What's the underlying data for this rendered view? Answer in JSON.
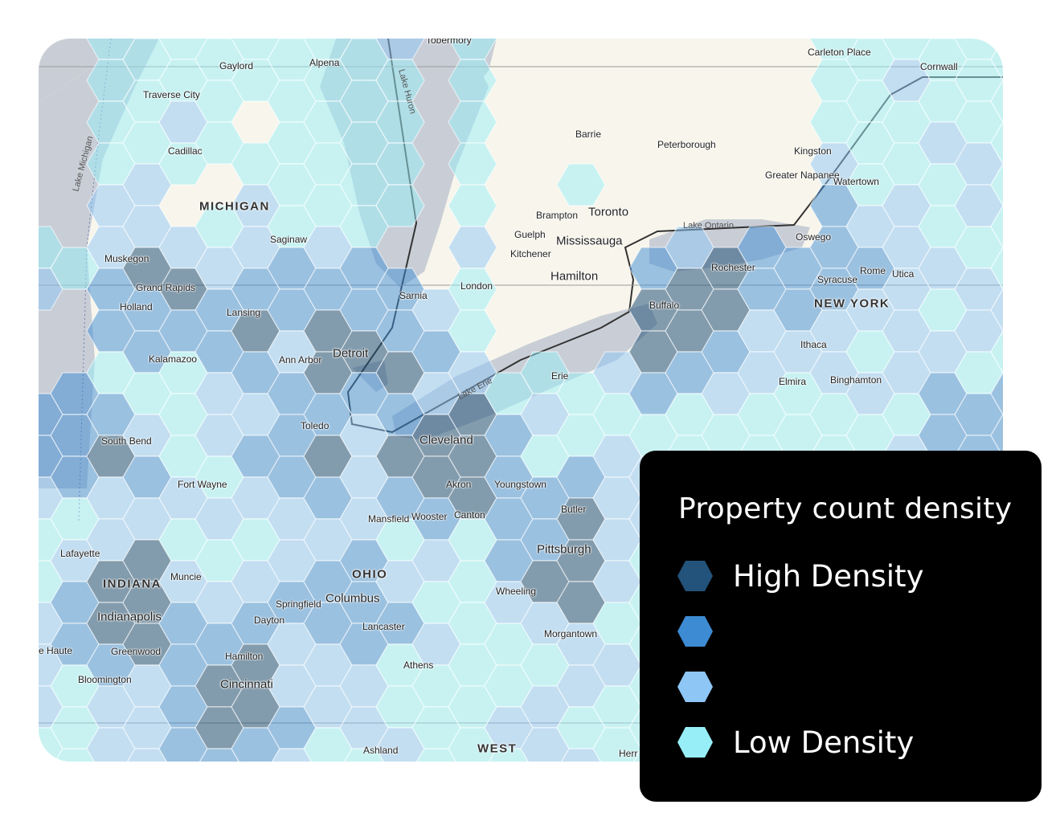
{
  "legend": {
    "title": "Property count density",
    "items": [
      {
        "label": "High Density",
        "color": "#23527a",
        "level": 4
      },
      {
        "label": "",
        "color": "#3d8bd3",
        "level": 3
      },
      {
        "label": "",
        "color": "#8ec6f5",
        "level": 2
      },
      {
        "label": "Low Density",
        "color": "#98eef7",
        "level": 1
      }
    ]
  },
  "map": {
    "colors": {
      "land": "#f8f6ec",
      "water": "#c9ced6",
      "border": "#333333"
    },
    "labels": {
      "tobermory": "Tobermory",
      "gaylord": "Gaylord",
      "alpena": "Alpena",
      "traverse_city": "Traverse City",
      "cadillac": "Cadillac",
      "michigan": "MICHIGAN",
      "saginaw": "Saginaw",
      "muskegon": "Muskegon",
      "grand_rapids": "Grand Rapids",
      "holland": "Holland",
      "lansing": "Lansing",
      "kalamazoo": "Kalamazoo",
      "ann_arbor": "Ann Arbor",
      "detroit": "Detroit",
      "sarnia": "Sarnia",
      "london": "London",
      "toledo": "Toledo",
      "south_bend": "South Bend",
      "fort_wayne": "Fort Wayne",
      "cleveland": "Cleveland",
      "akron": "Akron",
      "youngstown": "Youngstown",
      "mansfield": "Mansfield",
      "wooster": "Wooster",
      "canton": "Canton",
      "butler": "Butler",
      "pittsburgh": "Pittsburgh",
      "lafayette": "Lafayette",
      "indiana": "INDIANA",
      "muncie": "Muncie",
      "ohio": "OHIO",
      "columbus": "Columbus",
      "springfield": "Springfield",
      "indianapolis": "Indianapolis",
      "dayton": "Dayton",
      "lancaster": "Lancaster",
      "wheeling": "Wheeling",
      "morgantown": "Morgantown",
      "terre_haute": "e Haute",
      "greenwood": "Greenwood",
      "hamilton_oh": "Hamilton",
      "athens": "Athens",
      "bloomington": "Bloomington",
      "cincinnati": "Cincinnati",
      "ashland": "Ashland",
      "west_virginia": "WEST",
      "erie": "Erie",
      "barrie": "Barrie",
      "peterborough": "Peterborough",
      "kingston": "Kingston",
      "napanee": "Greater Napanee",
      "watertown": "Watertown",
      "brampton": "Brampton",
      "toronto": "Toronto",
      "guelph": "Guelph",
      "mississauga": "Mississauga",
      "kitchener": "Kitchener",
      "hamilton_on": "Hamilton",
      "oswego": "Oswego",
      "rochester": "Rochester",
      "rome": "Rome",
      "utica": "Utica",
      "syracuse": "Syracuse",
      "new_york": "NEW YORK",
      "buffalo": "Buffalo",
      "ithaca": "Ithaca",
      "elmira": "Elmira",
      "binghamton": "Binghamton",
      "carleton_place": "Carleton Place",
      "cornwall": "Cornwall",
      "lake_huron": "Lake Huron",
      "lake_michigan": "Lake Michigan",
      "lake_erie": "Lake Erie",
      "lake_ontario": "Lake Ontario",
      "herr": "Herr"
    }
  }
}
